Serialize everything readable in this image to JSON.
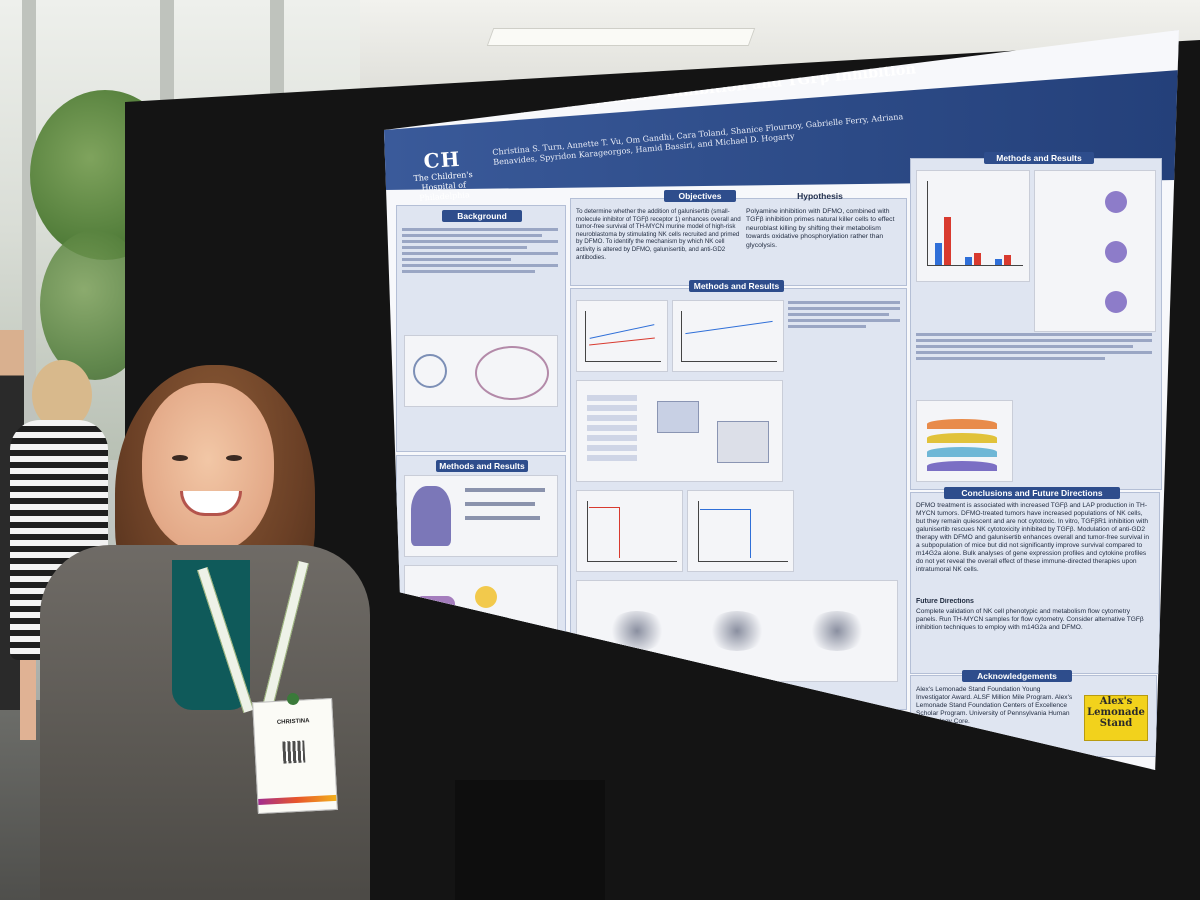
{
  "poster": {
    "title": "Stimulating Natural Killer Cell Cytotoxicity with Polyamine Synthesis Inhibition and TGFβ Inhibition",
    "authors": "Christina S. Turn, Annette T. Vu, Om Gandhi, Cara Toland, Shanice Flournoy, Gabrielle Ferry, Adriana Benavides, Spyridon Karageorgos, Hamid Bassiri, and Michael D. Hogarty",
    "institution_logo_mark": "CH",
    "institution_logo_name": "The Children's Hospital of Philadelphia",
    "sections": {
      "background": "Background",
      "objectives": "Objectives",
      "hypothesis": "Hypothesis",
      "methods_results_1": "Methods and Results",
      "methods_results_2": "Methods and Results",
      "methods_results_3": "Methods and Results",
      "conclusions": "Conclusions and Future Directions",
      "acknowledgements": "Acknowledgements"
    },
    "hypothesis_text": "Polyamine inhibition with DFMO, combined with TGFβ inhibition primes natural killer cells to effect neuroblast killing by shifting their metabolism towards oxidative phosphorylation rather than glycolysis.",
    "objectives_text": "To determine whether the addition of galunisertib (small-molecule inhibitor of TGFβ receptor 1) enhances overall and tumor-free survival of TH-MYCN murine model of high-risk neuroblastoma by stimulating NK cells recruited and primed by DFMO. To identify the mechanism by which NK cell activity is altered by DFMO, galunisertib, and anti-GD2 antibodies.",
    "conclusions_text": "DFMO treatment is associated with increased TGFβ and LAP production in TH-MYCN tumors. DFMO-treated tumors have increased populations of NK cells, but they remain quiescent and are not cytotoxic. In vitro, TGFβR1 inhibition with galunisertib rescues NK cytotoxicity inhibited by TGFβ. Modulation of anti-GD2 therapy with DFMO and galunisertib enhances overall and tumor-free survival in a subpopulation of mice but did not significantly improve survival compared to m14G2a alone. Bulk analyses of gene expression profiles and cytokine profiles do not yet reveal the overall effect of these immune-directed therapies upon intratumoral NK cells.",
    "future_directions_title": "Future Directions",
    "future_directions": "Complete validation of NK cell phenotypic and metabolism flow cytometry panels. Run TH-MYCN samples for flow cytometry. Consider alternative TGFβ inhibition techniques to employ with m14G2a and DFMO.",
    "acknowledgements_text": "Alex's Lemonade Stand Foundation Young Investigator Award. ALSF Million Mile Program. Alex's Lemonade Stand Foundation Centers of Excellence Scholar Program. University of Pennsylvania Human Immunology Core.",
    "sponsor_logo": "Alex's Lemonade Stand"
  },
  "badge": {
    "name": "CHRISTINA"
  },
  "colors": {
    "poster_blue": "#2e4d8c",
    "panel_blue": "#dfe5f1",
    "blazer": "#5a5752",
    "top": "#0f5a5a",
    "lemonade_yellow": "#f2d21c"
  }
}
